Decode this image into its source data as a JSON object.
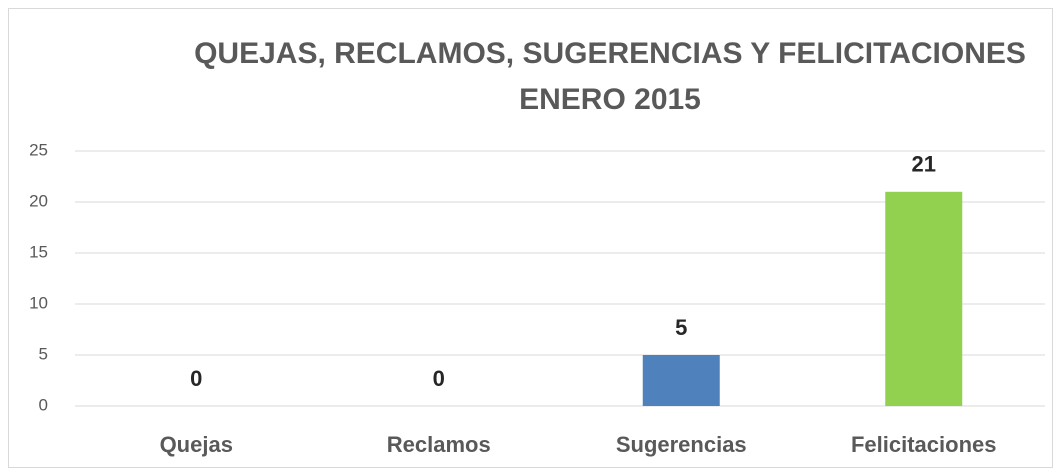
{
  "chart_data": {
    "type": "bar",
    "title": [
      "QUEJAS, RECLAMOS, SUGERENCIAS Y FELICITACIONES",
      "ENERO 2015"
    ],
    "categories": [
      "Quejas",
      "Reclamos",
      "Sugerencias",
      "Felicitaciones"
    ],
    "values": [
      0,
      0,
      5,
      21
    ],
    "colors": [
      "#4f81bd",
      "#4f81bd",
      "#4f81bd",
      "#92d050"
    ],
    "ylim": [
      0,
      25
    ],
    "yticks": [
      0,
      5,
      10,
      15,
      20,
      25
    ],
    "grid": true
  }
}
